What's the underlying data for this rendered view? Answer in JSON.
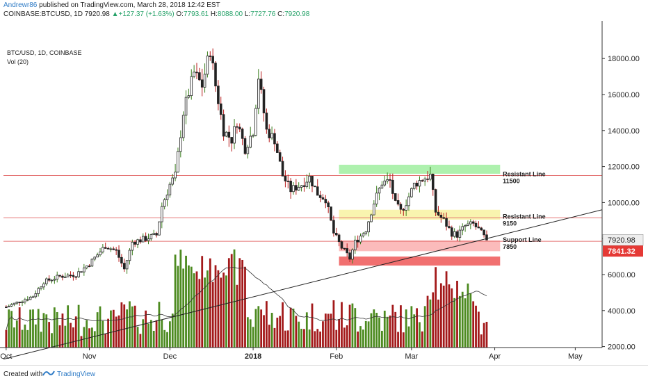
{
  "header": {
    "author": "Andrewr86",
    "published": " published on TradingView.com, March 28, 2018 12:42 EST",
    "symbol": "COINBASE:BTCUSD, 1D ",
    "price": "7920.98",
    "change_arrow": "▲",
    "change": "+127.37 (+1.63%)",
    "o_label": " O:",
    "o_val": "7793.61",
    "h_label": " H:",
    "h_val": "8088.00",
    "l_label": " L:",
    "l_val": "7727.76",
    "c_label": " C:",
    "c_val": "7920.98"
  },
  "legend": {
    "title": "BTC/USD, 1D, COINBASE",
    "vol": "Vol (20)"
  },
  "footer": {
    "created": "Created with",
    "brand": "TradingView"
  },
  "colors": {
    "up": "#3a7d1d",
    "down": "#b71c1c",
    "vol_up": "#4c8a1f",
    "vol_down": "#a3191a",
    "red_line": "#e57373",
    "green_zone": "#a5f0a5",
    "yellow_zone": "#f8f3a6",
    "red_zone_light": "#fbb4b4",
    "red_zone_dark": "#f06060",
    "price_tag": "#e53935"
  },
  "chart_data": {
    "type": "candlestick",
    "title": "BTC/USD, 1D, COINBASE",
    "xlabel": "",
    "ylabel": "",
    "ylim": [
      0,
      18800
    ],
    "y_ticks": [
      "2000.00",
      "4000.00",
      "6000.00",
      "8000.00",
      "10000.00",
      "12000.00",
      "14000.00",
      "16000.00",
      "18000.00"
    ],
    "y_tick_values": [
      2000,
      4000,
      6000,
      8000,
      10000,
      12000,
      14000,
      16000,
      18000
    ],
    "x_range_days": [
      -1,
      222
    ],
    "x_ticks": [
      {
        "label": "Oct",
        "day": 0
      },
      {
        "label": "Nov",
        "day": 31
      },
      {
        "label": "Dec",
        "day": 61
      },
      {
        "label": "2018",
        "day": 92
      },
      {
        "label": "Feb",
        "day": 123
      },
      {
        "label": "Mar",
        "day": 151
      },
      {
        "label": "Apr",
        "day": 182
      },
      {
        "label": "May",
        "day": 212
      }
    ],
    "price_keyframes": [
      [
        0,
        4200
      ],
      [
        10,
        4800
      ],
      [
        14,
        5600
      ],
      [
        20,
        5900
      ],
      [
        26,
        6000
      ],
      [
        31,
        6600
      ],
      [
        37,
        7600
      ],
      [
        41,
        7300
      ],
      [
        44,
        6300
      ],
      [
        47,
        7800
      ],
      [
        52,
        8000
      ],
      [
        56,
        8200
      ],
      [
        58,
        9800
      ],
      [
        61,
        11000
      ],
      [
        63,
        11500
      ],
      [
        66,
        15000
      ],
      [
        70,
        17200
      ],
      [
        73,
        16500
      ],
      [
        76,
        18500
      ],
      [
        78,
        16500
      ],
      [
        81,
        14000
      ],
      [
        84,
        13500
      ],
      [
        86,
        14500
      ],
      [
        89,
        13000
      ],
      [
        92,
        14000
      ],
      [
        94,
        17000
      ],
      [
        97,
        14000
      ],
      [
        100,
        13500
      ],
      [
        103,
        11500
      ],
      [
        106,
        10700
      ],
      [
        110,
        11000
      ],
      [
        113,
        11400
      ],
      [
        116,
        10500
      ],
      [
        119,
        10200
      ],
      [
        122,
        8300
      ],
      [
        125,
        7500
      ],
      [
        128,
        6900
      ],
      [
        130,
        7800
      ],
      [
        134,
        8500
      ],
      [
        137,
        10000
      ],
      [
        140,
        11100
      ],
      [
        143,
        11200
      ],
      [
        145,
        9900
      ],
      [
        147,
        9500
      ],
      [
        149,
        10000
      ],
      [
        152,
        11000
      ],
      [
        155,
        11300
      ],
      [
        158,
        11500
      ],
      [
        160,
        9500
      ],
      [
        163,
        9000
      ],
      [
        166,
        8300
      ],
      [
        168,
        8200
      ],
      [
        171,
        8700
      ],
      [
        174,
        8800
      ],
      [
        176,
        8500
      ],
      [
        179,
        7900
      ]
    ],
    "last_price": "7920.98",
    "alert_price": "7841.32",
    "horizontal_lines": [
      11500,
      9150,
      7850
    ],
    "zones": [
      {
        "from_day": 124,
        "to_day": 184,
        "low": 11600,
        "high": 12100,
        "color": "green"
      },
      {
        "from_day": 124,
        "to_day": 184,
        "low": 9050,
        "high": 9600,
        "color": "yellow"
      },
      {
        "from_day": 124,
        "to_day": 184,
        "low": 7300,
        "high": 7900,
        "color": "red_light"
      },
      {
        "from_day": 124,
        "to_day": 184,
        "low": 6500,
        "high": 7000,
        "color": "red_dark"
      }
    ],
    "annotations": [
      {
        "text": "Resistant Line",
        "value": "11500",
        "day": 185,
        "price": 11500
      },
      {
        "text": "Resistant Line",
        "value": "9150",
        "day": 185,
        "price": 9150
      },
      {
        "text": "Support Line",
        "value": "7850",
        "day": 185,
        "price": 7850
      }
    ],
    "trendline": [
      [
        -1,
        1300
      ],
      [
        222,
        9600
      ]
    ]
  }
}
